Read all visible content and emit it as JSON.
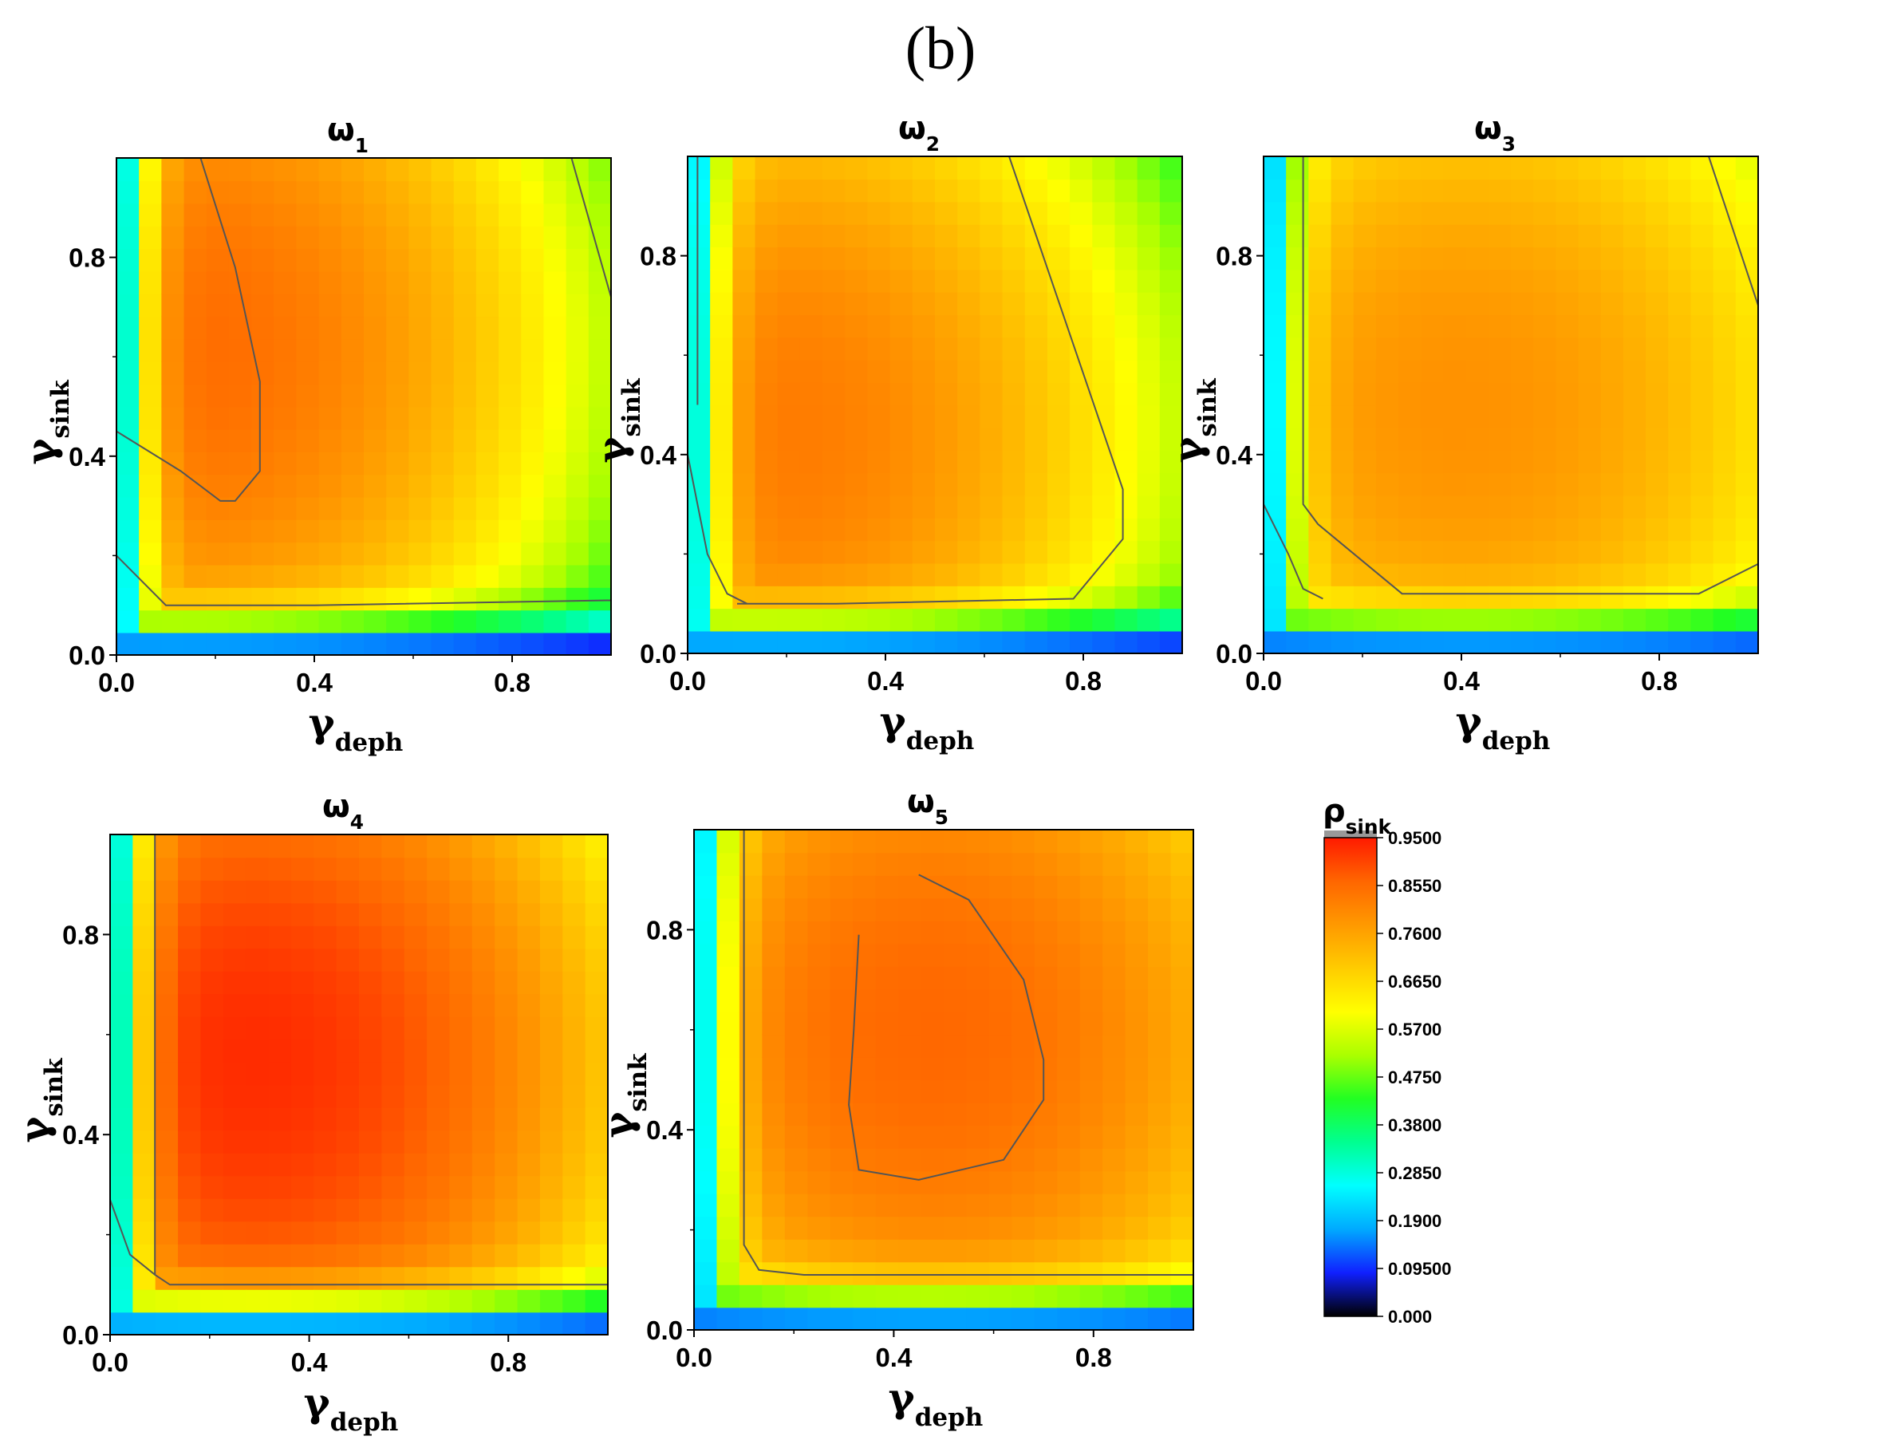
{
  "figure_label": "(b)",
  "colors": {
    "stops": [
      "#000000",
      "#1020ff",
      "#00aaff",
      "#00ffff",
      "#00ff90",
      "#22ff22",
      "#aaff00",
      "#ffff00",
      "#ffcc00",
      "#ff9900",
      "#ff6600",
      "#ff1a00"
    ],
    "contour_line": "#555555",
    "colorbar_top": "#999999"
  },
  "chart_data": [
    {
      "type": "heatmap",
      "title_base": "ω",
      "title_sub": "1",
      "xlabel_base": "γ",
      "xlabel_sub": "deph",
      "ylabel_base": "γ",
      "ylabel_sub": "sink",
      "xlim": [
        0,
        1
      ],
      "ylim": [
        0,
        1
      ],
      "xticks": [
        0.0,
        0.4,
        0.8
      ],
      "yticks": [
        0.0,
        0.4,
        0.8
      ],
      "xtick_labels": [
        "0.0",
        "0.4",
        "0.8"
      ],
      "ytick_labels": [
        "0.0",
        "0.4",
        "0.8"
      ],
      "peak_value": 0.855,
      "peak_location": [
        0.12,
        0.62
      ],
      "contours": [
        [
          [
            0.17,
            1.0
          ],
          [
            0.24,
            0.78
          ],
          [
            0.29,
            0.55
          ],
          [
            0.29,
            0.37
          ],
          [
            0.24,
            0.31
          ],
          [
            0.21,
            0.31
          ],
          [
            0.13,
            0.37
          ],
          [
            0.0,
            0.45
          ]
        ],
        [
          [
            0.0,
            0.2
          ],
          [
            0.1,
            0.1
          ],
          [
            0.4,
            0.1
          ],
          [
            1.0,
            0.11
          ]
        ],
        [
          [
            0.92,
            1.0
          ],
          [
            1.0,
            0.72
          ]
        ]
      ]
    },
    {
      "type": "heatmap",
      "title_base": "ω",
      "title_sub": "2",
      "xlabel_base": "γ",
      "xlabel_sub": "deph",
      "ylabel_base": "γ",
      "ylabel_sub": "sink",
      "xlim": [
        0,
        1
      ],
      "ylim": [
        0,
        1
      ],
      "xticks": [
        0.0,
        0.4,
        0.8
      ],
      "yticks": [
        0.0,
        0.4,
        0.8
      ],
      "xtick_labels": [
        "0.0",
        "0.4",
        "0.8"
      ],
      "ytick_labels": [
        "0.0",
        "0.4",
        "0.8"
      ],
      "peak_value": 0.83,
      "peak_location": [
        0.15,
        0.45
      ],
      "contours": [
        [
          [
            0.65,
            1.0
          ],
          [
            0.88,
            0.33
          ],
          [
            0.88,
            0.23
          ],
          [
            0.78,
            0.11
          ],
          [
            0.3,
            0.1
          ],
          [
            0.1,
            0.1
          ]
        ],
        [
          [
            0.0,
            0.4
          ],
          [
            0.04,
            0.2
          ],
          [
            0.08,
            0.12
          ],
          [
            0.12,
            0.1
          ]
        ],
        [
          [
            0.02,
            1.0
          ],
          [
            0.02,
            0.5
          ]
        ]
      ]
    },
    {
      "type": "heatmap",
      "title_base": "ω",
      "title_sub": "3",
      "xlabel_base": "γ",
      "xlabel_sub": "deph",
      "ylabel_base": "γ",
      "ylabel_sub": "sink",
      "xlim": [
        0,
        1
      ],
      "ylim": [
        0,
        1
      ],
      "xticks": [
        0.0,
        0.4,
        0.8
      ],
      "yticks": [
        0.0,
        0.4,
        0.8
      ],
      "xtick_labels": [
        "0.0",
        "0.4",
        "0.8"
      ],
      "ytick_labels": [
        "0.0",
        "0.4",
        "0.8"
      ],
      "peak_value": 0.79,
      "peak_location": [
        0.4,
        0.5
      ],
      "contours": [
        [
          [
            0.08,
            1.0
          ],
          [
            0.08,
            0.3
          ],
          [
            0.11,
            0.26
          ],
          [
            0.28,
            0.12
          ],
          [
            0.88,
            0.12
          ],
          [
            1.0,
            0.18
          ]
        ],
        [
          [
            0.0,
            0.3
          ],
          [
            0.05,
            0.2
          ],
          [
            0.08,
            0.13
          ],
          [
            0.12,
            0.11
          ]
        ],
        [
          [
            0.9,
            1.0
          ],
          [
            1.0,
            0.7
          ]
        ]
      ]
    },
    {
      "type": "heatmap",
      "title_base": "ω",
      "title_sub": "4",
      "xlabel_base": "γ",
      "xlabel_sub": "deph",
      "ylabel_base": "γ",
      "ylabel_sub": "sink",
      "xlim": [
        0,
        1
      ],
      "ylim": [
        0,
        1
      ],
      "xticks": [
        0.0,
        0.4,
        0.8
      ],
      "yticks": [
        0.0,
        0.4,
        0.8
      ],
      "xtick_labels": [
        "0.0",
        "0.4",
        "0.8"
      ],
      "ytick_labels": [
        "0.0",
        "0.4",
        "0.8"
      ],
      "peak_value": 0.93,
      "peak_location": [
        0.28,
        0.55
      ],
      "contours": [
        [
          [
            0.09,
            1.0
          ],
          [
            0.09,
            0.12
          ],
          [
            0.12,
            0.1
          ],
          [
            1.0,
            0.1
          ]
        ],
        [
          [
            0.0,
            0.27
          ],
          [
            0.04,
            0.16
          ],
          [
            0.09,
            0.12
          ]
        ]
      ]
    },
    {
      "type": "heatmap",
      "title_base": "ω",
      "title_sub": "5",
      "xlabel_base": "γ",
      "xlabel_sub": "deph",
      "ylabel_base": "γ",
      "ylabel_sub": "sink",
      "xlim": [
        0,
        1
      ],
      "ylim": [
        0,
        1
      ],
      "xticks": [
        0.0,
        0.4,
        0.8
      ],
      "yticks": [
        0.0,
        0.4,
        0.8
      ],
      "xtick_labels": [
        "0.0",
        "0.4",
        "0.8"
      ],
      "ytick_labels": [
        "0.0",
        "0.4",
        "0.8"
      ],
      "peak_value": 0.86,
      "peak_location": [
        0.47,
        0.6
      ],
      "contours": [
        [
          [
            0.45,
            0.91
          ],
          [
            0.55,
            0.86
          ],
          [
            0.66,
            0.7
          ],
          [
            0.7,
            0.54
          ],
          [
            0.7,
            0.46
          ],
          [
            0.62,
            0.34
          ],
          [
            0.45,
            0.3
          ],
          [
            0.33,
            0.32
          ],
          [
            0.31,
            0.45
          ],
          [
            0.32,
            0.6
          ],
          [
            0.33,
            0.79
          ]
        ],
        [
          [
            0.1,
            1.0
          ],
          [
            0.1,
            0.17
          ],
          [
            0.13,
            0.12
          ],
          [
            0.22,
            0.11
          ],
          [
            1.0,
            0.11
          ]
        ]
      ]
    }
  ],
  "colorbar": {
    "label_base": "ρ",
    "label_sub": "sink",
    "ticks": [
      0.95,
      0.855,
      0.76,
      0.665,
      0.57,
      0.475,
      0.38,
      0.285,
      0.19,
      0.095,
      0.0
    ],
    "tick_labels": [
      "0.9500",
      "0.8550",
      "0.7600",
      "0.6650",
      "0.5700",
      "0.4750",
      "0.3800",
      "0.2850",
      "0.1900",
      "0.09500",
      "0.000"
    ]
  }
}
